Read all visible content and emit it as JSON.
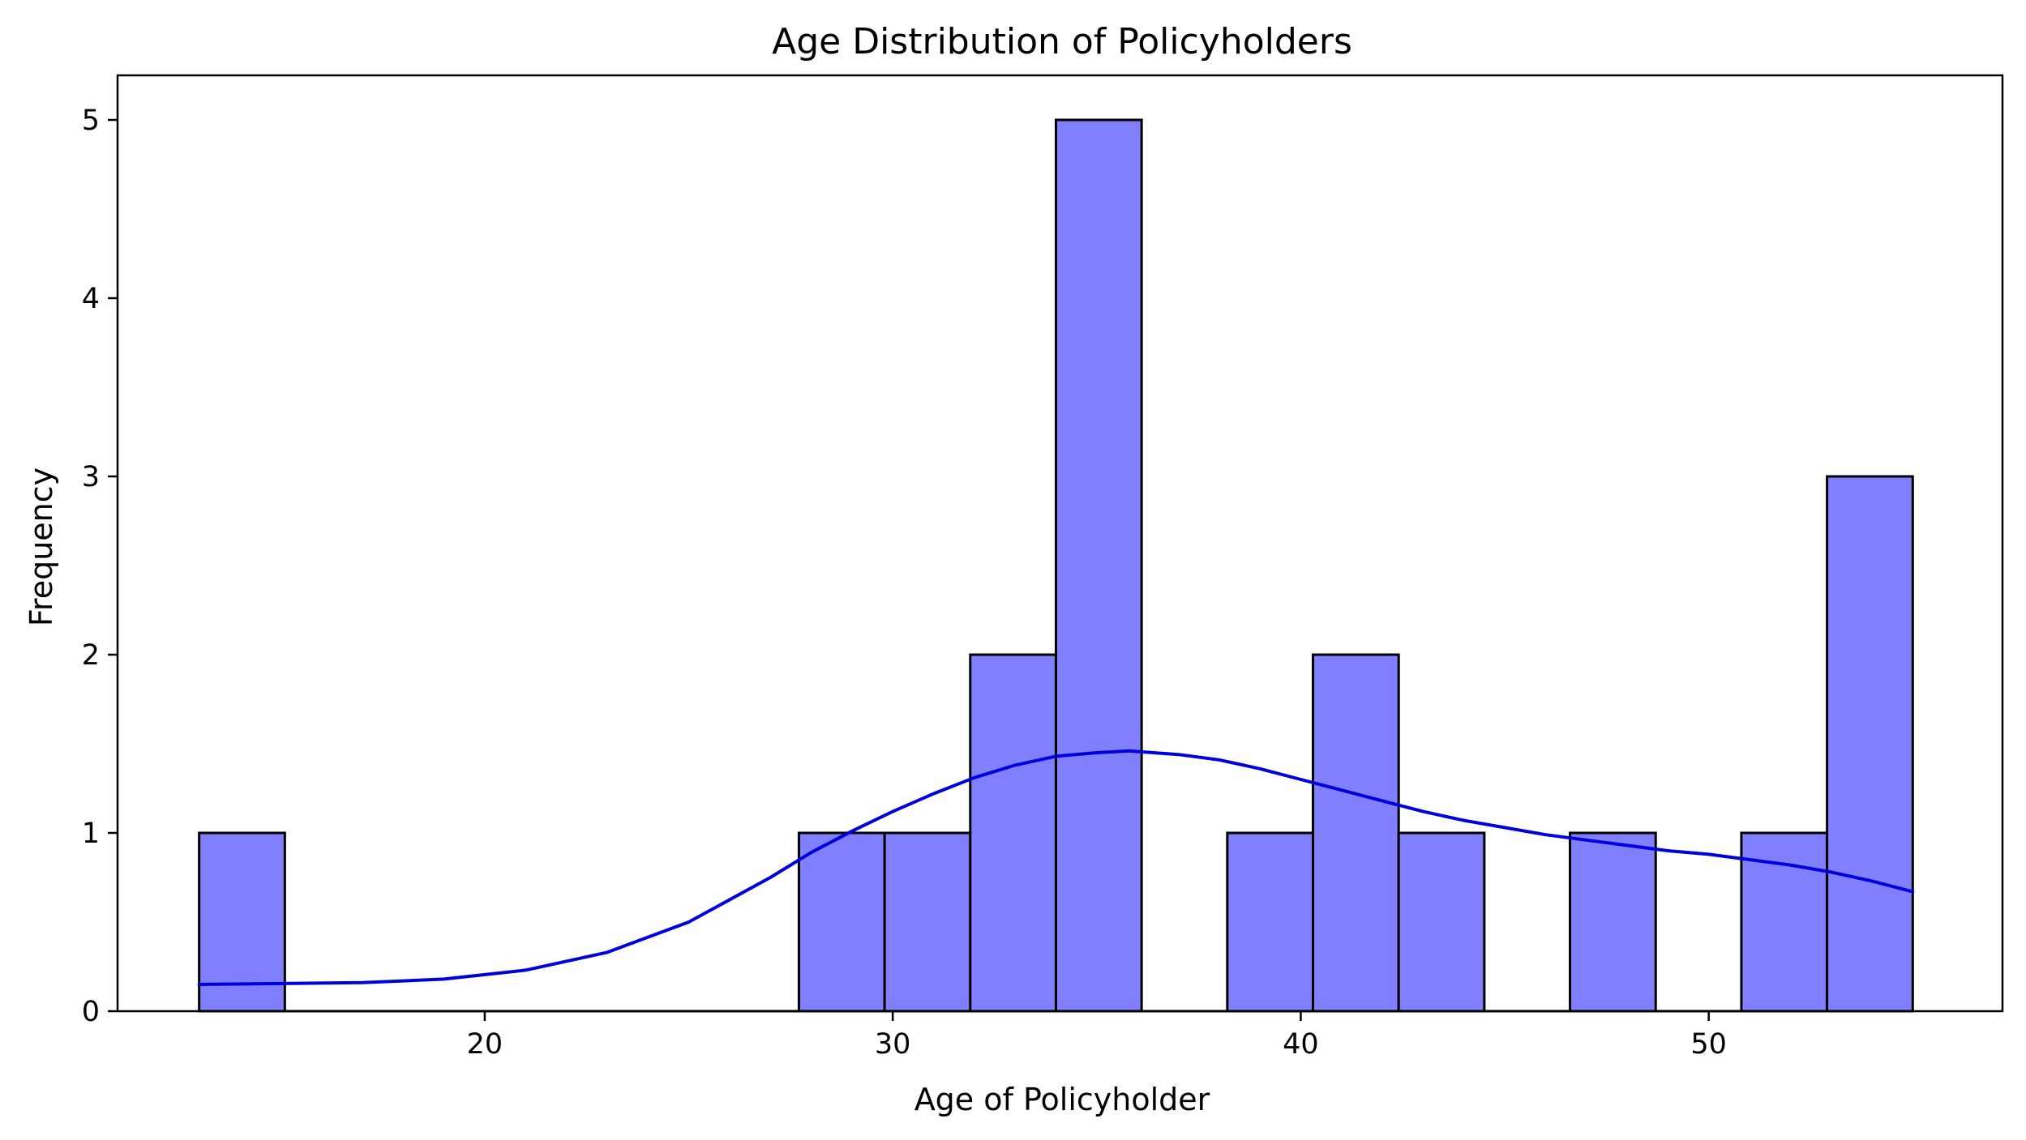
{
  "chart_data": {
    "type": "bar",
    "subtype": "histogram_with_kde",
    "title": "Age Distribution of Policyholders",
    "xlabel": "Age of Policyholder",
    "ylabel": "Frequency",
    "xlim": [
      11.0,
      57.2
    ],
    "ylim": [
      0,
      5.25
    ],
    "xticks": [
      20,
      30,
      40,
      50
    ],
    "yticks": [
      0,
      1,
      2,
      3,
      4,
      5
    ],
    "grid": false,
    "bins": [
      {
        "x0": 13.0,
        "x1": 15.1,
        "value": 1
      },
      {
        "x0": 15.1,
        "x1": 17.2,
        "value": 0
      },
      {
        "x0": 17.2,
        "x1": 19.3,
        "value": 0
      },
      {
        "x0": 19.3,
        "x1": 21.4,
        "value": 0
      },
      {
        "x0": 21.4,
        "x1": 23.5,
        "value": 0
      },
      {
        "x0": 23.5,
        "x1": 25.6,
        "value": 0
      },
      {
        "x0": 25.6,
        "x1": 27.7,
        "value": 0
      },
      {
        "x0": 27.7,
        "x1": 29.8,
        "value": 1
      },
      {
        "x0": 29.8,
        "x1": 31.9,
        "value": 1
      },
      {
        "x0": 31.9,
        "x1": 34.0,
        "value": 2
      },
      {
        "x0": 34.0,
        "x1": 36.1,
        "value": 5
      },
      {
        "x0": 36.1,
        "x1": 38.2,
        "value": 0
      },
      {
        "x0": 38.2,
        "x1": 40.3,
        "value": 1
      },
      {
        "x0": 40.3,
        "x1": 42.4,
        "value": 2
      },
      {
        "x0": 42.4,
        "x1": 44.5,
        "value": 1
      },
      {
        "x0": 44.5,
        "x1": 46.6,
        "value": 0
      },
      {
        "x0": 46.6,
        "x1": 48.7,
        "value": 1
      },
      {
        "x0": 48.7,
        "x1": 50.8,
        "value": 0
      },
      {
        "x0": 50.8,
        "x1": 52.9,
        "value": 1
      },
      {
        "x0": 52.9,
        "x1": 55.0,
        "value": 3
      }
    ],
    "kde": {
      "x": [
        13,
        15,
        17,
        19,
        21,
        23,
        25,
        27,
        28,
        29,
        30,
        31,
        32,
        33,
        34,
        35,
        35.8,
        37,
        38,
        39,
        40,
        41,
        42,
        43,
        44,
        45,
        46,
        47,
        48,
        49,
        50,
        51,
        52,
        53,
        54,
        55
      ],
      "y": [
        0.15,
        0.155,
        0.16,
        0.18,
        0.23,
        0.33,
        0.5,
        0.75,
        0.89,
        1.01,
        1.12,
        1.22,
        1.31,
        1.38,
        1.43,
        1.45,
        1.46,
        1.44,
        1.41,
        1.36,
        1.3,
        1.24,
        1.18,
        1.12,
        1.07,
        1.03,
        0.99,
        0.96,
        0.93,
        0.9,
        0.88,
        0.85,
        0.82,
        0.78,
        0.73,
        0.67
      ]
    },
    "colors": {
      "bar_fill": "#8080ff",
      "bar_edge": "#000000",
      "kde_line": "#0000dd"
    }
  }
}
